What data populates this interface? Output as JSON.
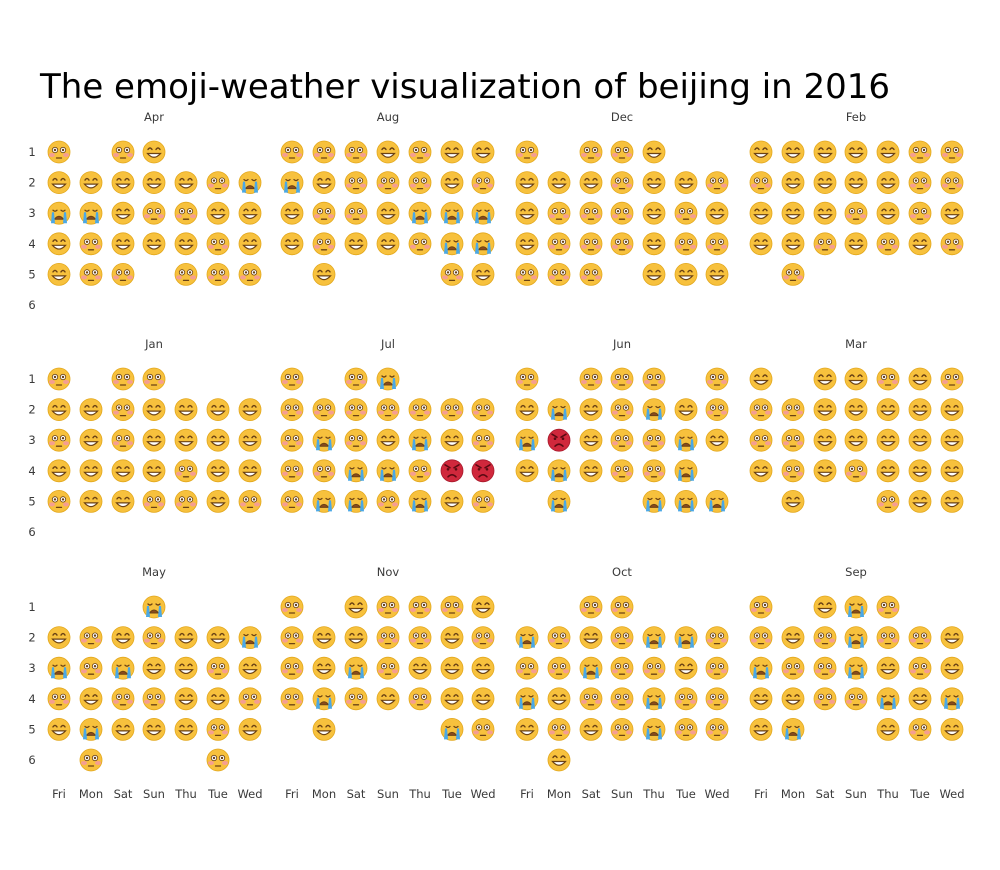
{
  "colors": {
    "face": "#f7c13d",
    "face_edge": "#e3a81d",
    "feature": "#6b4214",
    "blush": "#f49a9a",
    "tear": "#4aa8e6",
    "angry_face": "#d0283c"
  },
  "chart_data": {
    "type": "heatmap",
    "title": "The emoji-weather visualization of beijing in 2016",
    "legend": "none",
    "grid": false,
    "encoding": {
      "s": "smiling face (grinning)",
      "b": "flushed face (blushing)",
      "c": "crying face",
      "a": "angry face (red)"
    },
    "x_labels": [
      "Fri",
      "Mon",
      "Sat",
      "Sun",
      "Thu",
      "Tue",
      "Wed"
    ],
    "y_labels": [
      "1",
      "2",
      "3",
      "4",
      "5",
      "6"
    ],
    "panels": [
      {
        "month": "Apr",
        "rows": [
          "b_bs___",
          "sssssbc",
          "ccsbbss",
          "sbsssbs",
          "sbb_bbb",
          "_______"
        ]
      },
      {
        "month": "Aug",
        "rows": [
          "bbbsbss",
          "csbbbsb",
          "sbbsccc",
          "sbssbcc",
          "_s___bs",
          "_______"
        ]
      },
      {
        "month": "Dec",
        "rows": [
          "b_bbs__",
          "sssbssb",
          "sbbbsbs",
          "sbbbsbb",
          "bbb_sss",
          "_______"
        ]
      },
      {
        "month": "Feb",
        "rows": [
          "sssssbb",
          "bssssbb",
          "sssbsbs",
          "ssbsbsb",
          "_b_____",
          "_______"
        ]
      },
      {
        "month": "Jan",
        "rows": [
          "b_bb___",
          "ssbssss",
          "bsbssss",
          "ssssbss",
          "bssbbsb",
          "_______"
        ]
      },
      {
        "month": "Jul",
        "rows": [
          "b_bc___",
          "bbbbbbb",
          "bcbscsb",
          "bbccbaa",
          "bccbcsb",
          "_______"
        ]
      },
      {
        "month": "Jun",
        "rows": [
          "b_bbb_b",
          "scsbcsb",
          "casbbcs",
          "scsbbc_",
          "_c__ccc",
          "_______"
        ]
      },
      {
        "month": "Mar",
        "rows": [
          "s_ssbsb",
          "bbsssss",
          "bbsssss",
          "sbsbsss",
          "_s__bss",
          "_______"
        ]
      },
      {
        "month": "May",
        "rows": [
          "___c___",
          "sbsbssc",
          "cbcssbs",
          "bsbbssb",
          "scsssbs",
          "_b___b_"
        ]
      },
      {
        "month": "Nov",
        "rows": [
          "b_sbbbs",
          "bssbbsb",
          "bscbsss",
          "bcbsbss",
          "_s___cb",
          "_______"
        ]
      },
      {
        "month": "Oct",
        "rows": [
          "__bb___",
          "cbsbccb",
          "bbcbbsb",
          "csbbcbb",
          "sbsbcbb",
          "_s_____"
        ]
      },
      {
        "month": "Sep",
        "rows": [
          "b_scb__",
          "bsbcbbs",
          "cbbcsbs",
          "ssbbcsc",
          "sc__sbs",
          "_______"
        ]
      }
    ]
  }
}
